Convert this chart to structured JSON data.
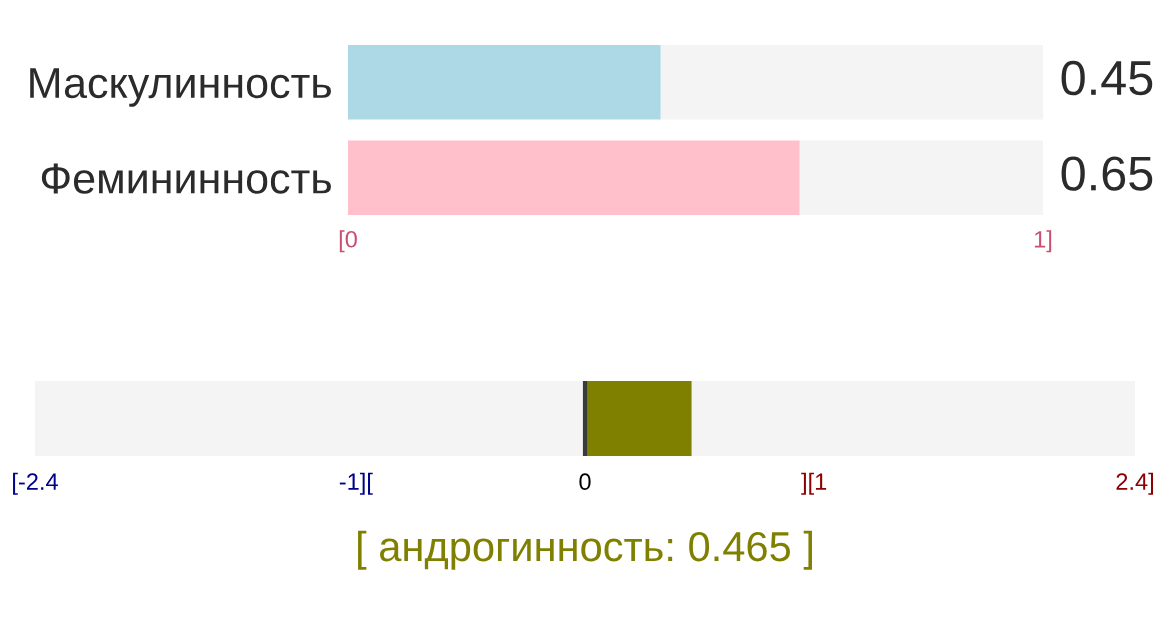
{
  "chart_data": [
    {
      "type": "bar",
      "orientation": "horizontal",
      "stacked": true,
      "categories": [
        "Маскулинность",
        "Фемининность"
      ],
      "series": [
        {
          "colors": [
            "#add8e6",
            "#ffc0cb"
          ],
          "values": [
            0.45,
            0.65
          ],
          "value_labels": [
            "0.45",
            "0.65"
          ]
        },
        {
          "color": "#f4f4f4",
          "values": [
            0.55,
            0.35
          ]
        }
      ],
      "xlim": [
        0,
        1
      ],
      "xticks": [
        {
          "value": 0,
          "label": "[0"
        },
        {
          "value": 1,
          "label": "1]"
        }
      ]
    },
    {
      "type": "bar",
      "orientation": "horizontal",
      "categories": [
        null
      ],
      "values": [
        0.465
      ],
      "color": "#808000",
      "xlim": [
        -2.4,
        2.4
      ],
      "xticks": [
        {
          "value": -2.4,
          "label": "[-2.4"
        },
        {
          "value": -1,
          "label": "-1]["
        },
        0,
        {
          "value": 1,
          "label": "][1"
        },
        {
          "value": 2.4,
          "label": "2.4]"
        }
      ],
      "ref_lines": [
        {
          "axis": "x",
          "value": 0,
          "color": "#3a3a3a"
        }
      ],
      "xlabel": "[ андрогинность: 0.465 ]"
    }
  ]
}
